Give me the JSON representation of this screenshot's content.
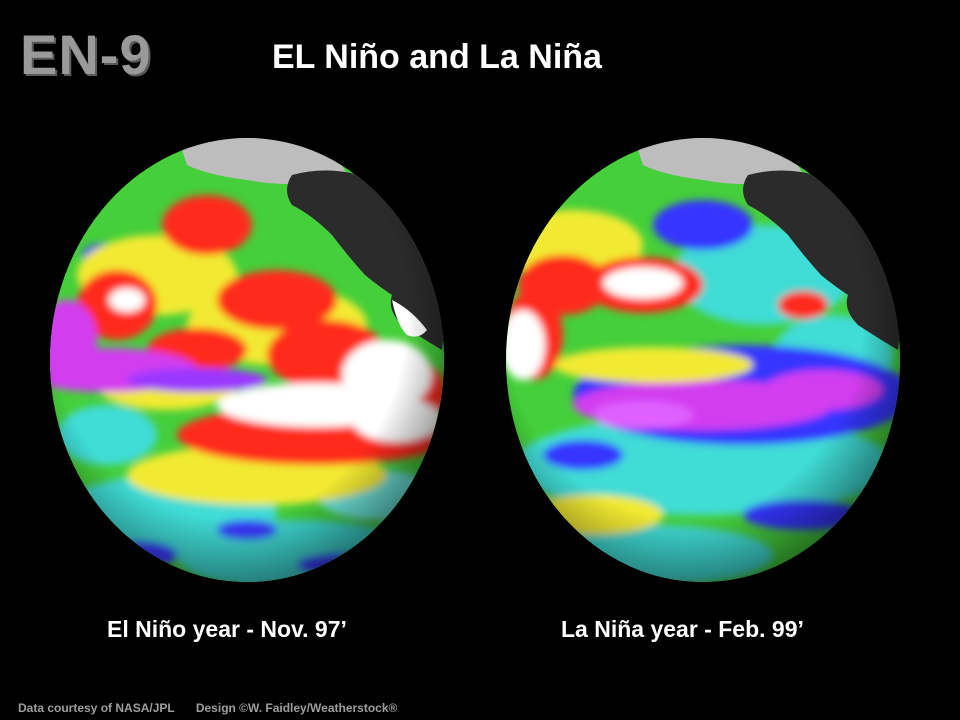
{
  "slide": {
    "code": "EN-9",
    "title": "EL Niño and La Niña"
  },
  "globes": [
    {
      "caption": "El Niño year - Nov. 97’",
      "anomaly": "warm equatorial Pacific band"
    },
    {
      "caption": "La Niña year - Feb. 99’",
      "anomaly": "cool equatorial Pacific band"
    }
  ],
  "credits": {
    "data": "Data courtesy of NASA/JPL",
    "design": "Design ©W. Faidley/Weatherstock®"
  },
  "colors": {
    "background": "#000000",
    "land": "#2b2b2b",
    "ice": "#bdbdbd",
    "ocean_green": "#4ad23c",
    "ocean_yellow": "#f2ea32",
    "ocean_cyan": "#3fe0d8",
    "warm_red": "#ff2020",
    "warm_white": "#ffffff",
    "cool_blue": "#3636ff",
    "cool_magenta": "#d23cf0"
  }
}
